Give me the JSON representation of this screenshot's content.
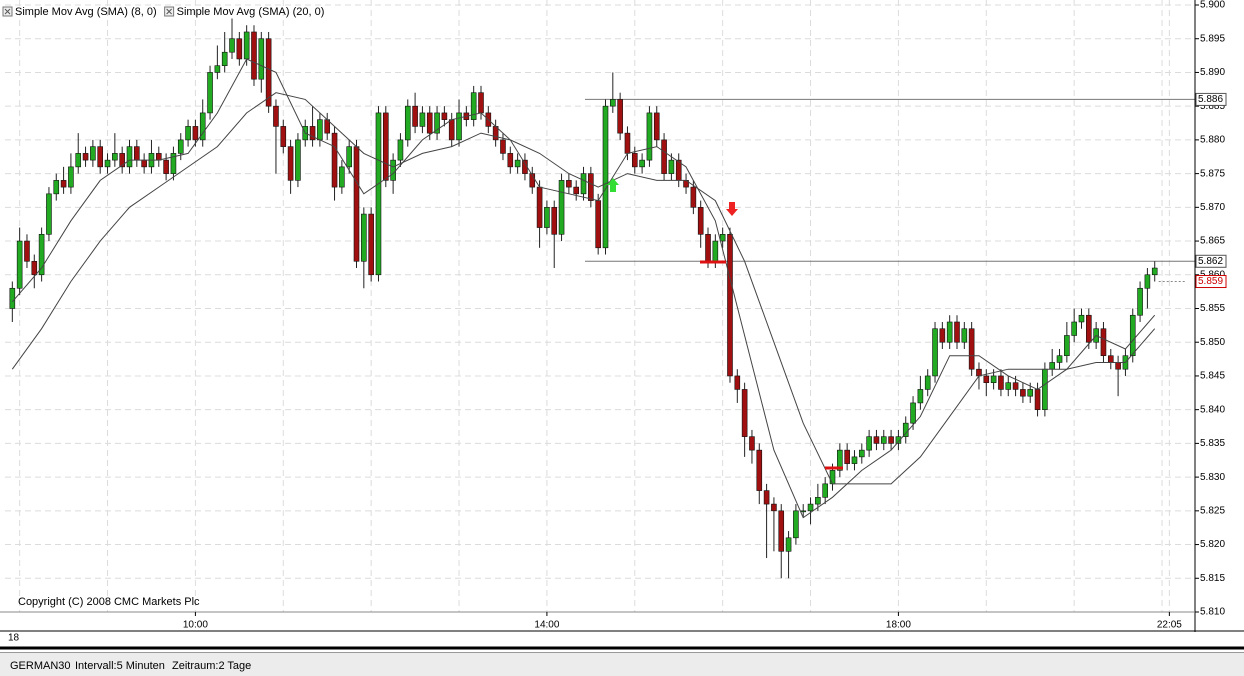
{
  "chart_data": {
    "type": "candlestick",
    "date_label": "18",
    "copyright": "Copyright (C) 2008 CMC Markets Plc",
    "up_color": "#22aa22",
    "down_color": "#a01010",
    "xlim": [
      -1,
      161.5
    ],
    "xticks": [
      {
        "value": 25,
        "label": "10:00"
      },
      {
        "value": 73,
        "label": "14:00"
      },
      {
        "value": 121,
        "label": "18:00"
      },
      {
        "value": 158,
        "label": "22:05"
      }
    ],
    "ylim": [
      5.81,
      5.9
    ],
    "yticks": [
      {
        "value": 5.9,
        "label": "5.900"
      },
      5.895,
      {
        "value": 5.89,
        "label": "5.890"
      },
      5.885,
      {
        "value": 5.88,
        "label": "5.880"
      },
      5.875,
      {
        "value": 5.87,
        "label": "5.870"
      },
      5.865,
      {
        "value": 5.86,
        "label": "5.860"
      },
      5.855,
      {
        "value": 5.85,
        "label": "5.850"
      },
      5.845,
      {
        "value": 5.84,
        "label": "5.840"
      },
      5.835,
      {
        "value": 5.83,
        "label": "5.830"
      },
      5.825,
      {
        "value": 5.82,
        "label": "5.820"
      },
      5.815,
      {
        "value": 5.81,
        "label": "5.810"
      }
    ],
    "grid": true,
    "hlines": [
      5.886,
      5.862
    ],
    "last_price": 5.859,
    "candles": [
      [
        5.855,
        5.859,
        5.853,
        5.858
      ],
      [
        5.858,
        5.867,
        5.857,
        5.865
      ],
      [
        5.865,
        5.866,
        5.861,
        5.862
      ],
      [
        5.862,
        5.863,
        5.858,
        5.86
      ],
      [
        5.86,
        5.867,
        5.859,
        5.866
      ],
      [
        5.866,
        5.873,
        5.865,
        5.872
      ],
      [
        5.872,
        5.875,
        5.871,
        5.874
      ],
      [
        5.874,
        5.876,
        5.872,
        5.873
      ],
      [
        5.873,
        5.878,
        5.872,
        5.876
      ],
      [
        5.876,
        5.881,
        5.875,
        5.878
      ],
      [
        5.878,
        5.879,
        5.876,
        5.877
      ],
      [
        5.877,
        5.88,
        5.876,
        5.879
      ],
      [
        5.879,
        5.88,
        5.875,
        5.876
      ],
      [
        5.876,
        5.878,
        5.875,
        5.877
      ],
      [
        5.877,
        5.881,
        5.876,
        5.878
      ],
      [
        5.878,
        5.879,
        5.875,
        5.876
      ],
      [
        5.876,
        5.88,
        5.875,
        5.879
      ],
      [
        5.879,
        5.88,
        5.876,
        5.877
      ],
      [
        5.877,
        5.878,
        5.875,
        5.876
      ],
      [
        5.876,
        5.88,
        5.875,
        5.878
      ],
      [
        5.878,
        5.879,
        5.876,
        5.877
      ],
      [
        5.877,
        5.878,
        5.874,
        5.875
      ],
      [
        5.875,
        5.879,
        5.874,
        5.878
      ],
      [
        5.878,
        5.881,
        5.877,
        5.88
      ],
      [
        5.88,
        5.883,
        5.879,
        5.882
      ],
      [
        5.882,
        5.883,
        5.879,
        5.88
      ],
      [
        5.88,
        5.886,
        5.879,
        5.884
      ],
      [
        5.884,
        5.891,
        5.883,
        5.89
      ],
      [
        5.89,
        5.894,
        5.889,
        5.891
      ],
      [
        5.891,
        5.896,
        5.89,
        5.893
      ],
      [
        5.893,
        5.898,
        5.892,
        5.895
      ],
      [
        5.895,
        5.896,
        5.891,
        5.892
      ],
      [
        5.892,
        5.897,
        5.891,
        5.896
      ],
      [
        5.896,
        5.897,
        5.888,
        5.889
      ],
      [
        5.889,
        5.896,
        5.887,
        5.895
      ],
      [
        5.895,
        5.896,
        5.884,
        5.885
      ],
      [
        5.885,
        5.886,
        5.875,
        5.882
      ],
      [
        5.882,
        5.883,
        5.878,
        5.879
      ],
      [
        5.879,
        5.88,
        5.872,
        5.874
      ],
      [
        5.874,
        5.881,
        5.873,
        5.88
      ],
      [
        5.88,
        5.883,
        5.879,
        5.882
      ],
      [
        5.882,
        5.885,
        5.879,
        5.88
      ],
      [
        5.88,
        5.884,
        5.879,
        5.883
      ],
      [
        5.883,
        5.884,
        5.88,
        5.881
      ],
      [
        5.881,
        5.882,
        5.871,
        5.873
      ],
      [
        5.873,
        5.877,
        5.872,
        5.876
      ],
      [
        5.876,
        5.88,
        5.875,
        5.879
      ],
      [
        5.879,
        5.88,
        5.861,
        5.862
      ],
      [
        5.862,
        5.87,
        5.858,
        5.869
      ],
      [
        5.869,
        5.87,
        5.859,
        5.86
      ],
      [
        5.86,
        5.885,
        5.859,
        5.884
      ],
      [
        5.884,
        5.885,
        5.873,
        5.874
      ],
      [
        5.874,
        5.878,
        5.872,
        5.877
      ],
      [
        5.877,
        5.881,
        5.876,
        5.88
      ],
      [
        5.88,
        5.886,
        5.879,
        5.885
      ],
      [
        5.885,
        5.887,
        5.881,
        5.882
      ],
      [
        5.882,
        5.885,
        5.881,
        5.884
      ],
      [
        5.884,
        5.885,
        5.88,
        5.881
      ],
      [
        5.881,
        5.885,
        5.88,
        5.884
      ],
      [
        5.884,
        5.885,
        5.882,
        5.883
      ],
      [
        5.883,
        5.884,
        5.879,
        5.88
      ],
      [
        5.88,
        5.886,
        5.879,
        5.884
      ],
      [
        5.884,
        5.885,
        5.882,
        5.883
      ],
      [
        5.883,
        5.888,
        5.882,
        5.887
      ],
      [
        5.887,
        5.888,
        5.883,
        5.884
      ],
      [
        5.884,
        5.885,
        5.881,
        5.882
      ],
      [
        5.882,
        5.883,
        5.879,
        5.88
      ],
      [
        5.88,
        5.881,
        5.877,
        5.878
      ],
      [
        5.878,
        5.879,
        5.875,
        5.876
      ],
      [
        5.876,
        5.878,
        5.875,
        5.877
      ],
      [
        5.877,
        5.878,
        5.874,
        5.875
      ],
      [
        5.875,
        5.876,
        5.872,
        5.873
      ],
      [
        5.873,
        5.874,
        5.864,
        5.867
      ],
      [
        5.867,
        5.871,
        5.866,
        5.87
      ],
      [
        5.87,
        5.871,
        5.861,
        5.866
      ],
      [
        5.866,
        5.875,
        5.865,
        5.874
      ],
      [
        5.874,
        5.875,
        5.872,
        5.873
      ],
      [
        5.873,
        5.874,
        5.871,
        5.872
      ],
      [
        5.872,
        5.876,
        5.871,
        5.875
      ],
      [
        5.875,
        5.876,
        5.87,
        5.871
      ],
      [
        5.871,
        5.872,
        5.863,
        5.864
      ],
      [
        5.864,
        5.886,
        5.863,
        5.885
      ],
      [
        5.885,
        5.89,
        5.884,
        5.886
      ],
      [
        5.886,
        5.887,
        5.88,
        5.881
      ],
      [
        5.881,
        5.882,
        5.877,
        5.878
      ],
      [
        5.878,
        5.879,
        5.875,
        5.876
      ],
      [
        5.876,
        5.878,
        5.875,
        5.877
      ],
      [
        5.877,
        5.885,
        5.876,
        5.884
      ],
      [
        5.884,
        5.885,
        5.879,
        5.88
      ],
      [
        5.88,
        5.881,
        5.874,
        5.875
      ],
      [
        5.875,
        5.878,
        5.874,
        5.877
      ],
      [
        5.877,
        5.878,
        5.873,
        5.874
      ],
      [
        5.874,
        5.875,
        5.872,
        5.873
      ],
      [
        5.873,
        5.874,
        5.869,
        5.87
      ],
      [
        5.87,
        5.871,
        5.864,
        5.866
      ],
      [
        5.866,
        5.867,
        5.861,
        5.862
      ],
      [
        5.862,
        5.866,
        5.861,
        5.865
      ],
      [
        5.865,
        5.867,
        5.864,
        5.866
      ],
      [
        5.866,
        5.867,
        5.844,
        5.845
      ],
      [
        5.845,
        5.846,
        5.841,
        5.843
      ],
      [
        5.843,
        5.844,
        5.833,
        5.836
      ],
      [
        5.836,
        5.837,
        5.832,
        5.834
      ],
      [
        5.834,
        5.835,
        5.826,
        5.828
      ],
      [
        5.828,
        5.829,
        5.818,
        5.826
      ],
      [
        5.826,
        5.827,
        5.819,
        5.825
      ],
      [
        5.825,
        5.826,
        5.815,
        5.819
      ],
      [
        5.819,
        5.822,
        5.815,
        5.821
      ],
      [
        5.821,
        5.826,
        5.82,
        5.825
      ],
      [
        5.825,
        5.826,
        5.824,
        5.825
      ],
      [
        5.825,
        5.827,
        5.823,
        5.826
      ],
      [
        5.826,
        5.829,
        5.825,
        5.827
      ],
      [
        5.827,
        5.83,
        5.826,
        5.829
      ],
      [
        5.829,
        5.832,
        5.828,
        5.831
      ],
      [
        5.831,
        5.835,
        5.83,
        5.834
      ],
      [
        5.834,
        5.835,
        5.831,
        5.832
      ],
      [
        5.832,
        5.834,
        5.831,
        5.833
      ],
      [
        5.833,
        5.835,
        5.832,
        5.834
      ],
      [
        5.834,
        5.837,
        5.833,
        5.836
      ],
      [
        5.836,
        5.837,
        5.834,
        5.835
      ],
      [
        5.835,
        5.837,
        5.834,
        5.836
      ],
      [
        5.836,
        5.837,
        5.834,
        5.835
      ],
      [
        5.835,
        5.837,
        5.834,
        5.836
      ],
      [
        5.836,
        5.839,
        5.835,
        5.838
      ],
      [
        5.838,
        5.842,
        5.837,
        5.841
      ],
      [
        5.841,
        5.845,
        5.84,
        5.843
      ],
      [
        5.843,
        5.846,
        5.842,
        5.845
      ],
      [
        5.845,
        5.853,
        5.844,
        5.852
      ],
      [
        5.852,
        5.853,
        5.849,
        5.85
      ],
      [
        5.85,
        5.854,
        5.849,
        5.853
      ],
      [
        5.853,
        5.854,
        5.849,
        5.85
      ],
      [
        5.85,
        5.853,
        5.849,
        5.852
      ],
      [
        5.852,
        5.853,
        5.845,
        5.846
      ],
      [
        5.846,
        5.847,
        5.843,
        5.845
      ],
      [
        5.845,
        5.846,
        5.842,
        5.844
      ],
      [
        5.844,
        5.846,
        5.843,
        5.845
      ],
      [
        5.845,
        5.846,
        5.842,
        5.843
      ],
      [
        5.843,
        5.845,
        5.842,
        5.844
      ],
      [
        5.844,
        5.845,
        5.842,
        5.843
      ],
      [
        5.843,
        5.844,
        5.841,
        5.842
      ],
      [
        5.842,
        5.844,
        5.841,
        5.843
      ],
      [
        5.843,
        5.844,
        5.839,
        5.84
      ],
      [
        5.84,
        5.847,
        5.839,
        5.846
      ],
      [
        5.846,
        5.849,
        5.845,
        5.847
      ],
      [
        5.847,
        5.849,
        5.846,
        5.848
      ],
      [
        5.848,
        5.853,
        5.847,
        5.851
      ],
      [
        5.851,
        5.855,
        5.85,
        5.853
      ],
      [
        5.853,
        5.855,
        5.852,
        5.854
      ],
      [
        5.854,
        5.855,
        5.849,
        5.85
      ],
      [
        5.85,
        5.853,
        5.849,
        5.852
      ],
      [
        5.852,
        5.853,
        5.847,
        5.848
      ],
      [
        5.848,
        5.849,
        5.846,
        5.847
      ],
      [
        5.847,
        5.848,
        5.842,
        5.846
      ],
      [
        5.846,
        5.849,
        5.845,
        5.848
      ],
      [
        5.848,
        5.855,
        5.847,
        5.854
      ],
      [
        5.854,
        5.859,
        5.853,
        5.858
      ],
      [
        5.858,
        5.861,
        5.855,
        5.86
      ],
      [
        5.86,
        5.862,
        5.859,
        5.861
      ]
    ],
    "series": [
      {
        "name": "Simple Mov Avg (SMA) (8, 0)",
        "color": "#444444",
        "x": [
          0,
          4,
          8,
          12,
          16,
          20,
          24,
          28,
          32,
          36,
          40,
          44,
          48,
          52,
          56,
          60,
          64,
          68,
          72,
          76,
          80,
          84,
          88,
          92,
          96,
          100,
          104,
          108,
          112,
          116,
          120,
          124,
          128,
          132,
          136,
          140,
          144,
          148,
          152,
          156
        ],
        "values": [
          5.856,
          5.861,
          5.868,
          5.874,
          5.877,
          5.877,
          5.878,
          5.884,
          5.892,
          5.89,
          5.881,
          5.879,
          5.872,
          5.875,
          5.88,
          5.883,
          5.884,
          5.88,
          5.873,
          5.872,
          5.871,
          5.878,
          5.879,
          5.876,
          5.868,
          5.851,
          5.834,
          5.824,
          5.827,
          5.831,
          5.834,
          5.839,
          5.848,
          5.848,
          5.845,
          5.843,
          5.846,
          5.851,
          5.849,
          5.854
        ]
      },
      {
        "name": "Simple Mov Avg (SMA) (20, 0)",
        "color": "#444444",
        "x": [
          0,
          4,
          8,
          12,
          16,
          20,
          24,
          28,
          32,
          36,
          40,
          44,
          48,
          52,
          56,
          60,
          64,
          68,
          72,
          76,
          80,
          84,
          88,
          92,
          96,
          100,
          104,
          108,
          112,
          116,
          120,
          124,
          128,
          132,
          136,
          140,
          144,
          148,
          152,
          156
        ],
        "values": [
          5.846,
          5.852,
          5.859,
          5.865,
          5.87,
          5.873,
          5.876,
          5.879,
          5.884,
          5.887,
          5.886,
          5.882,
          5.878,
          5.876,
          5.878,
          5.879,
          5.881,
          5.88,
          5.878,
          5.875,
          5.873,
          5.875,
          5.874,
          5.874,
          5.871,
          5.862,
          5.85,
          5.838,
          5.829,
          5.829,
          5.829,
          5.833,
          5.839,
          5.845,
          5.846,
          5.846,
          5.846,
          5.847,
          5.847,
          5.852
        ]
      }
    ]
  },
  "status_bar": {
    "instrument": "GERMAN30",
    "interval": "Intervall:5 Minuten",
    "period": "Zeitraum:2 Tage"
  }
}
